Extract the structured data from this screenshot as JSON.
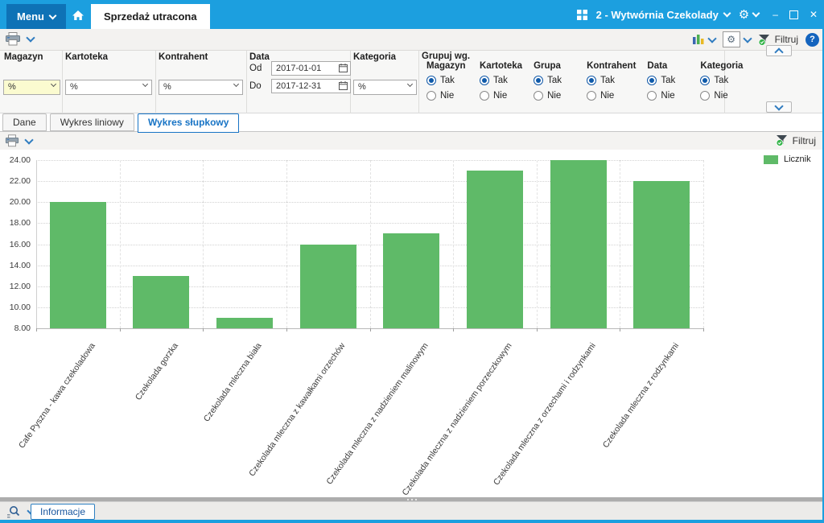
{
  "titlebar": {
    "menu_label": "Menu",
    "page_tab": "Sprzedaż utracona",
    "company": "2 - Wytwórnia Czekolady",
    "minimize": "–",
    "close": "✕"
  },
  "toolbar": {
    "filter_label": "Filtruj",
    "help_label": "?"
  },
  "filter_panel": {
    "magazyn_label": "Magazyn",
    "magazyn_value": "%",
    "kartoteka_label": "Kartoteka",
    "kartoteka_value": "%",
    "kontrahent_label": "Kontrahent",
    "kontrahent_value": "%",
    "data_label": "Data",
    "od_label": "Od",
    "od_value": "2017-01-01",
    "do_label": "Do",
    "do_value": "2017-12-31",
    "kategoria_label": "Kategoria",
    "kategoria_value": "%",
    "grupuj_label": "Grupuj wg.",
    "radio_yes": "Tak",
    "radio_no": "Nie",
    "grupuj_groups": [
      {
        "label": "Magazyn",
        "value": "Tak"
      },
      {
        "label": "Kartoteka",
        "value": "Tak"
      },
      {
        "label": "Grupa",
        "value": "Tak"
      },
      {
        "label": "Kontrahent",
        "value": "Tak"
      },
      {
        "label": "Data",
        "value": "Tak"
      },
      {
        "label": "Kategoria",
        "value": "Tak"
      }
    ]
  },
  "view_tabs": [
    {
      "label": "Dane",
      "active": false
    },
    {
      "label": "Wykres liniowy",
      "active": false
    },
    {
      "label": "Wykres słupkowy",
      "active": true
    }
  ],
  "chart_toolbar": {
    "filter_label": "Filtruj"
  },
  "chart_data": {
    "type": "bar",
    "title": "",
    "categories": [
      "Cafe Pyszna - kawa czekoladowa",
      "Czekolada gorzka",
      "Czekolada mleczna biała",
      "Czekolada mleczna z kawałkami orzechów",
      "Czekolada mleczna z nadzieniem malinowym",
      "Czekolada mleczna z nadzieniem porzeczkowym",
      "Czekolada mleczna z orzechami i rodzynkami",
      "Czekolada mleczna z rodzynkami"
    ],
    "values": [
      20,
      13,
      9,
      16,
      17,
      23,
      24,
      22
    ],
    "series_name": "Licznik",
    "bar_color": "#5FBA68",
    "ylim": [
      8,
      24
    ],
    "ytick_step": 2,
    "ytick_format": "0.00",
    "grid": true,
    "legend_position": "top-right"
  },
  "statusbar": {
    "informacje_label": "Informacje"
  },
  "colors": {
    "topbar": "#1C9FDF",
    "menu_button": "#0E72B6",
    "active_tab_text": "#1874C5",
    "bar_green": "#5FBA68",
    "radio_selected": "#0F5AA9"
  }
}
